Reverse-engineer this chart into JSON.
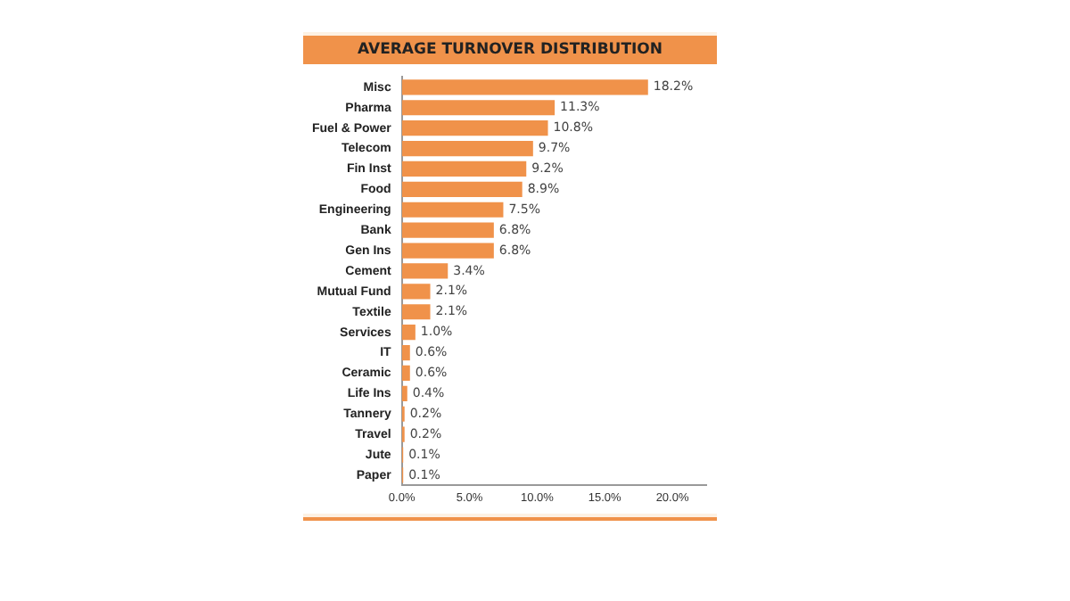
{
  "chart_data": {
    "type": "bar",
    "orientation": "horizontal",
    "title": "AVERAGE TURNOVER DISTRIBUTION",
    "categories": [
      "Misc",
      "Pharma",
      "Fuel & Power",
      "Telecom",
      "Fin Inst",
      "Food",
      "Engineering",
      "Bank",
      "Gen Ins",
      "Cement",
      "Mutual Fund",
      "Textile",
      "Services",
      "IT",
      "Ceramic",
      "Life Ins",
      "Tannery",
      "Travel",
      "Jute",
      "Paper"
    ],
    "values": [
      18.2,
      11.3,
      10.8,
      9.7,
      9.2,
      8.9,
      7.5,
      6.8,
      6.8,
      3.4,
      2.1,
      2.1,
      1.0,
      0.6,
      0.6,
      0.4,
      0.2,
      0.2,
      0.1,
      0.1
    ],
    "value_labels": [
      "18.2%",
      "11.3%",
      "10.8%",
      "9.7%",
      "9.2%",
      "8.9%",
      "7.5%",
      "6.8%",
      "6.8%",
      "3.4%",
      "2.1%",
      "2.1%",
      "1.0%",
      "0.6%",
      "0.6%",
      "0.4%",
      "0.2%",
      "0.2%",
      "0.1%",
      "0.1%"
    ],
    "color": "#f0924a",
    "xlim": [
      0,
      22.5
    ],
    "xticks": [
      {
        "value": 0,
        "label": "0.0%"
      },
      {
        "value": 5,
        "label": "5.0%"
      },
      {
        "value": 10,
        "label": "10.0%"
      },
      {
        "value": 15,
        "label": "15.0%"
      },
      {
        "value": 20,
        "label": "20.0%"
      }
    ],
    "grid": false,
    "legend": false
  }
}
